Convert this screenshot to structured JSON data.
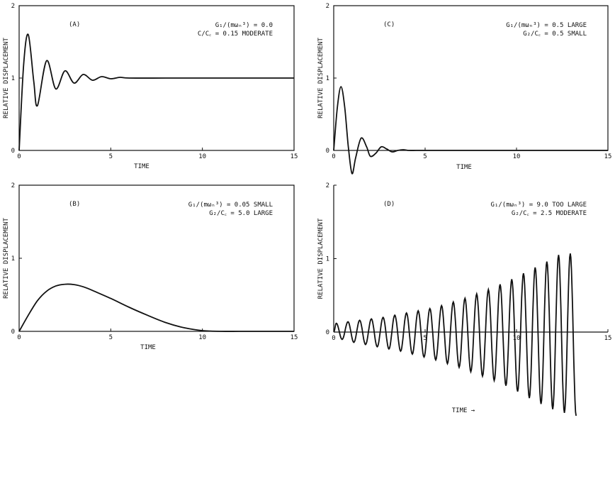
{
  "panels": [
    {
      "id": "A",
      "tag": "(A)",
      "ann1": "G₁/(mωₙ³) = 0.0",
      "ann2": "C/C꜀ = 0.15 MODERATE",
      "xlabel": "TIME",
      "ylabel": "RELATIVE DISPLACEMENT"
    },
    {
      "id": "B",
      "tag": "(B)",
      "ann1": "G₁/(mωₙ³) = 0.05 SMALL",
      "ann2": "G₂/C꜀ = 5.0   LARGE",
      "xlabel": "TIME",
      "ylabel": "RELATIVE DISPLACEMENT"
    },
    {
      "id": "C",
      "tag": "(C)",
      "ann1": "G₁/(mωₙ³) = 0.5 LARGE",
      "ann2": "G₂/C꜀ = 0.5 SMALL",
      "xlabel": "TIME",
      "ylabel": "RELATIVE DISPLACEMENT"
    },
    {
      "id": "D",
      "tag": "(D)",
      "ann1": "G₁/(mωₙ³) = 9.0 TOO LARGE",
      "ann2": "G₂/C꜀ = 2.5 MODERATE",
      "xlabel": "TIME →",
      "ylabel": "RELATIVE DISPLACEMENT"
    }
  ],
  "chart_data": [
    {
      "type": "line",
      "panel": "A",
      "xlim": [
        0,
        15
      ],
      "ylim": [
        0,
        2
      ],
      "xticks": [
        0,
        5,
        10,
        15
      ],
      "yticks": [
        0,
        1,
        2
      ],
      "xlabel": "TIME",
      "ylabel": "RELATIVE DISPLACEMENT",
      "annotations": [
        "(A)",
        "G₁/(mωₙ³) = 0.0",
        "C/C꜀ = 0.15 MODERATE"
      ],
      "series": [
        {
          "x": [
            0,
            0.25,
            0.5,
            0.8,
            1.0,
            1.5,
            2.0,
            2.5,
            3.0,
            3.5,
            4.0,
            4.5,
            5.0,
            5.5,
            6.0,
            8.0,
            10.0,
            12.0,
            15.0
          ],
          "y": [
            0,
            1.2,
            1.6,
            0.95,
            0.62,
            1.24,
            0.85,
            1.1,
            0.93,
            1.05,
            0.97,
            1.02,
            0.99,
            1.01,
            1.0,
            1.0,
            1.0,
            1.0,
            1.0
          ]
        }
      ]
    },
    {
      "type": "line",
      "panel": "B",
      "xlim": [
        0,
        15
      ],
      "ylim": [
        0,
        2
      ],
      "xticks": [
        0,
        5,
        10,
        15
      ],
      "yticks": [
        0,
        1,
        2
      ],
      "xlabel": "TIME",
      "ylabel": "RELATIVE DISPLACEMENT",
      "annotations": [
        "(B)",
        "G₁/(mωₙ³) = 0.05 SMALL",
        "G₂/C꜀ = 5.0   LARGE"
      ],
      "series": [
        {
          "x": [
            0,
            0.5,
            1.0,
            1.5,
            2.0,
            2.5,
            3.0,
            3.5,
            4.0,
            5.0,
            6.0,
            7.0,
            8.0,
            9.0,
            10.0,
            11.0,
            12.0,
            13.0,
            14.0,
            15.0
          ],
          "y": [
            0,
            0.22,
            0.42,
            0.55,
            0.62,
            0.645,
            0.64,
            0.61,
            0.56,
            0.45,
            0.33,
            0.22,
            0.12,
            0.05,
            0.01,
            0.0,
            0.0,
            0.0,
            0.0,
            0.0
          ]
        }
      ]
    },
    {
      "type": "line",
      "panel": "C",
      "xlim": [
        0,
        15
      ],
      "ylim": [
        0,
        2
      ],
      "xticks": [
        0,
        5,
        10,
        15
      ],
      "yticks": [
        0,
        1,
        2
      ],
      "xlabel": "TIME",
      "ylabel": "RELATIVE DISPLACEMENT",
      "annotations": [
        "(C)",
        "G₁/(mωₙ³) = 0.5 LARGE",
        "G₂/C꜀ = 0.5 SMALL"
      ],
      "series": [
        {
          "x": [
            0,
            0.2,
            0.4,
            0.6,
            0.8,
            1.0,
            1.2,
            1.5,
            1.8,
            2.0,
            2.3,
            2.6,
            2.9,
            3.2,
            3.5,
            3.8,
            4.1,
            4.5,
            5.0,
            8.0,
            15.0
          ],
          "y": [
            0,
            0.6,
            0.88,
            0.6,
            0.05,
            -0.32,
            -0.1,
            0.17,
            0.05,
            -0.08,
            -0.04,
            0.05,
            0.02,
            -0.02,
            0.0,
            0.01,
            0.0,
            0.0,
            0.0,
            0.0,
            0.0
          ]
        }
      ]
    },
    {
      "type": "line",
      "panel": "D",
      "xlim": [
        0,
        15
      ],
      "ylim": [
        -1.15,
        2
      ],
      "xticks": [
        0,
        5,
        10,
        15
      ],
      "yticks": [
        0,
        1,
        2
      ],
      "xlabel": "TIME →",
      "ylabel": "RELATIVE DISPLACEMENT",
      "annotations": [
        "(D)",
        "G₁/(mωₙ³) = 9.0 TOO LARGE",
        "G₂/C꜀ = 2.5 MODERATE"
      ],
      "series": [
        {
          "description_free": true,
          "period": 0.64,
          "peaks": [
            0.12,
            0.14,
            0.16,
            0.18,
            0.2,
            0.23,
            0.26,
            0.29,
            0.32,
            0.36,
            0.41,
            0.46,
            0.52,
            0.58,
            0.65,
            0.72,
            0.8,
            0.88,
            0.96,
            1.05,
            1.07
          ],
          "troughs": [
            -0.1,
            -0.14,
            -0.17,
            -0.2,
            -0.23,
            -0.26,
            -0.3,
            -0.34,
            -0.38,
            -0.43,
            -0.48,
            -0.54,
            -0.6,
            -0.66,
            -0.73,
            -0.81,
            -0.9,
            -0.98,
            -1.05,
            -1.1,
            -1.14
          ]
        }
      ]
    }
  ]
}
